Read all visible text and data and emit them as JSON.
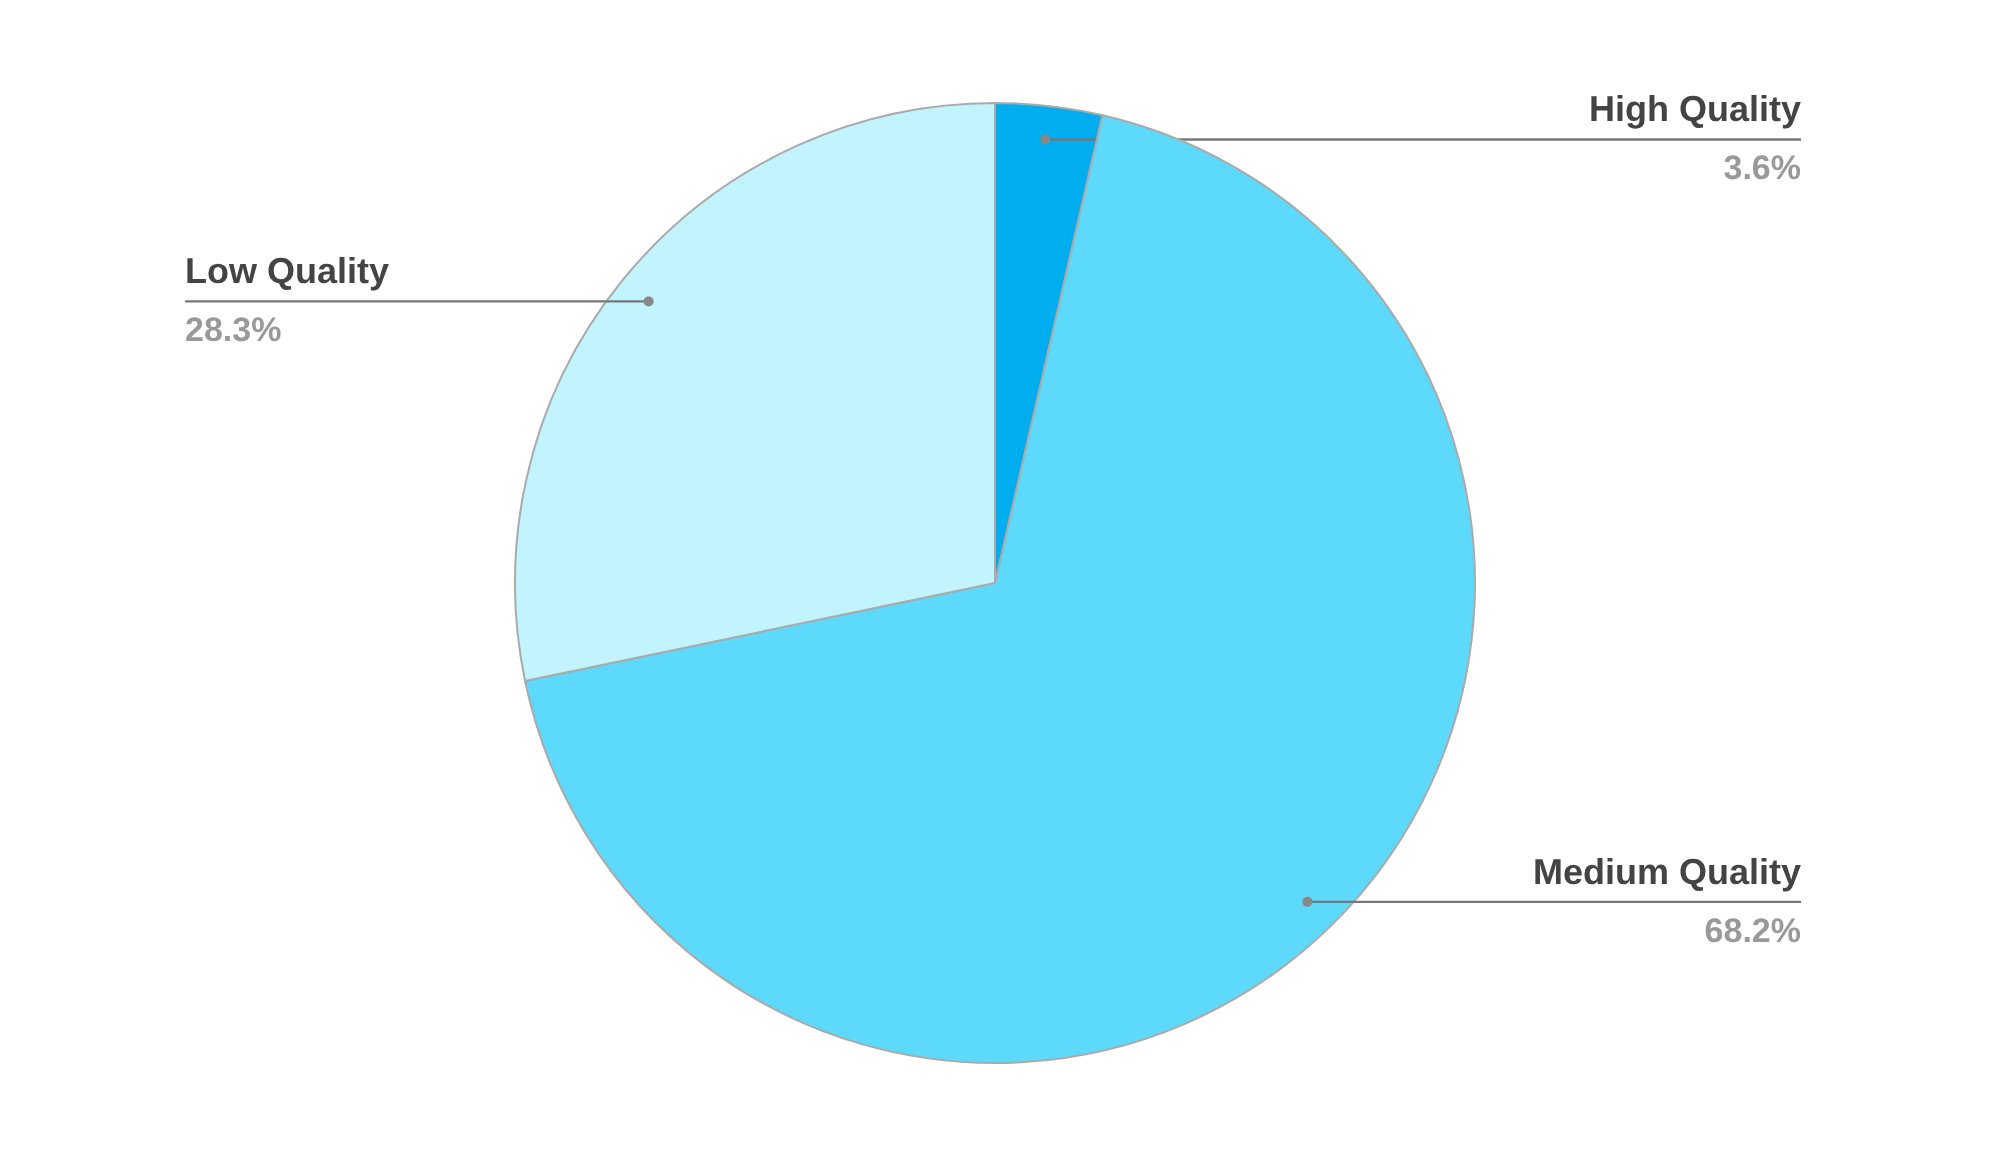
{
  "chart_data": {
    "type": "pie",
    "categories": [
      "High Quality",
      "Medium Quality",
      "Low Quality"
    ],
    "values": [
      3.6,
      68.2,
      28.3
    ],
    "colors": [
      "#00adef",
      "#5dd9fc",
      "#c1f4fe"
    ],
    "value_labels": [
      "3.6%",
      "68.2%",
      "28.3%"
    ]
  }
}
